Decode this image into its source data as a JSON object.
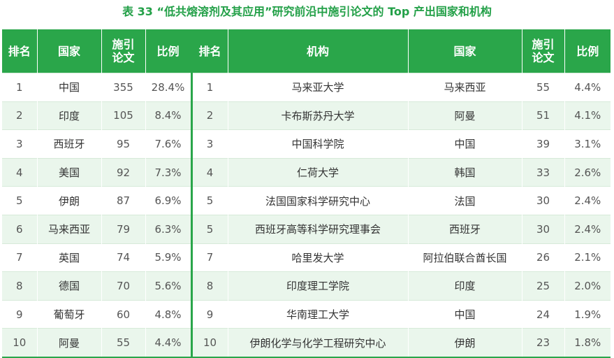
{
  "title": "表 33 “低共熔溶剂及其应用”研究前沿中施引论文的 Top 产出国家和机构",
  "headers": {
    "rank1": "排名",
    "country": "国家",
    "papers1_line1": "施引",
    "papers1_line2": "论文",
    "share1": "比例",
    "rank2": "排名",
    "institution": "机构",
    "inst_country": "国家",
    "papers2_line1": "施引",
    "papers2_line2": "论文",
    "share2": "比例"
  },
  "rows": [
    {
      "c_rank": "1",
      "country": "中国",
      "c_papers": "355",
      "c_share": "28.4%",
      "i_rank": "1",
      "institution": "马来亚大学",
      "i_country": "马来西亚",
      "i_papers": "55",
      "i_share": "4.4%"
    },
    {
      "c_rank": "2",
      "country": "印度",
      "c_papers": "105",
      "c_share": "8.4%",
      "i_rank": "2",
      "institution": "卡布斯苏丹大学",
      "i_country": "阿曼",
      "i_papers": "51",
      "i_share": "4.1%"
    },
    {
      "c_rank": "3",
      "country": "西班牙",
      "c_papers": "95",
      "c_share": "7.6%",
      "i_rank": "3",
      "institution": "中国科学院",
      "i_country": "中国",
      "i_papers": "39",
      "i_share": "3.1%"
    },
    {
      "c_rank": "4",
      "country": "美国",
      "c_papers": "92",
      "c_share": "7.3%",
      "i_rank": "4",
      "institution": "仁荷大学",
      "i_country": "韩国",
      "i_papers": "33",
      "i_share": "2.6%"
    },
    {
      "c_rank": "5",
      "country": "伊朗",
      "c_papers": "87",
      "c_share": "6.9%",
      "i_rank": "5",
      "institution": "法国国家科学研究中心",
      "i_country": "法国",
      "i_papers": "30",
      "i_share": "2.4%"
    },
    {
      "c_rank": "6",
      "country": "马来西亚",
      "c_papers": "79",
      "c_share": "6.3%",
      "i_rank": "5",
      "institution": "西班牙高等科学研究理事会",
      "i_country": "西班牙",
      "i_papers": "30",
      "i_share": "2.4%"
    },
    {
      "c_rank": "7",
      "country": "英国",
      "c_papers": "74",
      "c_share": "5.9%",
      "i_rank": "7",
      "institution": "哈里发大学",
      "i_country": "阿拉伯联合酋长国",
      "i_papers": "26",
      "i_share": "2.1%"
    },
    {
      "c_rank": "8",
      "country": "德国",
      "c_papers": "70",
      "c_share": "5.6%",
      "i_rank": "8",
      "institution": "印度理工学院",
      "i_country": "印度",
      "i_papers": "25",
      "i_share": "2.0%"
    },
    {
      "c_rank": "9",
      "country": "葡萄牙",
      "c_papers": "60",
      "c_share": "4.8%",
      "i_rank": "9",
      "institution": "华南理工大学",
      "i_country": "中国",
      "i_papers": "24",
      "i_share": "1.9%"
    },
    {
      "c_rank": "10",
      "country": "阿曼",
      "c_papers": "55",
      "c_share": "4.4%",
      "i_rank": "10",
      "institution": "伊朗化学与化学工程研究中心",
      "i_country": "伊朗",
      "i_papers": "23",
      "i_share": "1.8%"
    }
  ],
  "colors": {
    "accent": "#2aa64a",
    "title": "#23a048",
    "stripe": "#eaf6ec"
  }
}
